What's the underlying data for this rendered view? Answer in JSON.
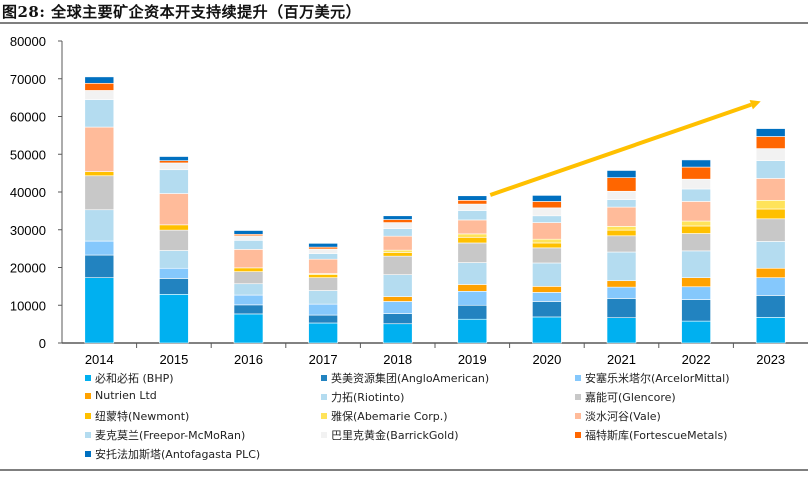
{
  "title": "图28:  全球主要矿企资本开支持续提升（百万美元）",
  "chart_data": {
    "type": "bar",
    "stacked": true,
    "title": "全球主要矿企资本开支持续提升（百万美元）",
    "xlabel": "",
    "ylabel": "",
    "ylim": [
      0,
      80000
    ],
    "yticks": [
      0,
      10000,
      20000,
      30000,
      40000,
      50000,
      60000,
      70000,
      80000
    ],
    "grid": false,
    "legend_position": "bottom",
    "categories": [
      "2014",
      "2015",
      "2016",
      "2017",
      "2018",
      "2019",
      "2020",
      "2021",
      "2022",
      "2023"
    ],
    "series": [
      {
        "name": "必和必拓 (BHP)",
        "color": "#00b0f0",
        "values": [
          17300,
          12900,
          7700,
          5300,
          5100,
          6300,
          6900,
          6700,
          5800,
          6800
        ]
      },
      {
        "name": "英美资源集团(AngloAmerican)",
        "color": "#2283c0",
        "values": [
          6000,
          4200,
          2400,
          2100,
          2700,
          3700,
          4100,
          5100,
          5700,
          5800
        ]
      },
      {
        "name": "安塞乐米塔尔(ArcelorMittal)",
        "color": "#85c8fc",
        "values": [
          3700,
          2700,
          2600,
          2900,
          3200,
          3700,
          2400,
          3000,
          3400,
          4700
        ]
      },
      {
        "name": "Nutrien Ltd",
        "color": "#ffa200",
        "values": [
          0,
          0,
          0,
          0,
          1300,
          1800,
          1600,
          1700,
          2400,
          2500
        ]
      },
      {
        "name": "力拓(Riotinto)",
        "color": "#b4dcf0",
        "values": [
          8300,
          4700,
          3000,
          3600,
          5800,
          5800,
          6200,
          7600,
          7100,
          7100
        ]
      },
      {
        "name": "嘉能可(Glencore)",
        "color": "#c8c8c8",
        "values": [
          9000,
          5400,
          3200,
          3400,
          4900,
          5200,
          4000,
          4300,
          4600,
          6000
        ]
      },
      {
        "name": "纽蒙特(Newmont)",
        "color": "#ffc000",
        "values": [
          1100,
          1400,
          1000,
          800,
          1000,
          1500,
          1300,
          1500,
          2000,
          2600
        ]
      },
      {
        "name": "雅保(Abemarie Corp.)",
        "color": "#ffe35a",
        "values": [
          0,
          0,
          0,
          300,
          600,
          900,
          1000,
          1000,
          1300,
          2300
        ]
      },
      {
        "name": "淡水河谷(Vale)",
        "color": "#ffbb9a",
        "values": [
          11800,
          8300,
          4900,
          3800,
          3700,
          3700,
          4400,
          5100,
          5200,
          5800
        ]
      },
      {
        "name": "麦克莫兰(Freepor-McMoRan)",
        "color": "#b4dcf0",
        "values": [
          7300,
          6300,
          2400,
          1500,
          2000,
          2500,
          1800,
          2000,
          3300,
          4700
        ]
      },
      {
        "name": "巴里克黄金(BarrickGold)",
        "color": "#f2f2f2",
        "values": [
          2400,
          1800,
          1200,
          1200,
          1600,
          1700,
          2100,
          2200,
          2600,
          3200
        ]
      },
      {
        "name": "福特斯库(FortescueMetals)",
        "color": "#ff6600",
        "values": [
          1900,
          600,
          400,
          500,
          800,
          1000,
          1700,
          3600,
          3200,
          3200
        ]
      },
      {
        "name": "安托法加斯塔(Antofagasta PLC)",
        "color": "#0070c0",
        "values": [
          1700,
          1100,
          1000,
          1000,
          1000,
          1200,
          1600,
          1900,
          1900,
          2100
        ]
      }
    ],
    "annotations": [
      {
        "type": "arrow",
        "color": "#ffc000",
        "from": {
          "category": "2019",
          "value": 39200
        },
        "to": {
          "category": "2023",
          "value": 64000
        },
        "meaning": "upward trend"
      }
    ]
  }
}
